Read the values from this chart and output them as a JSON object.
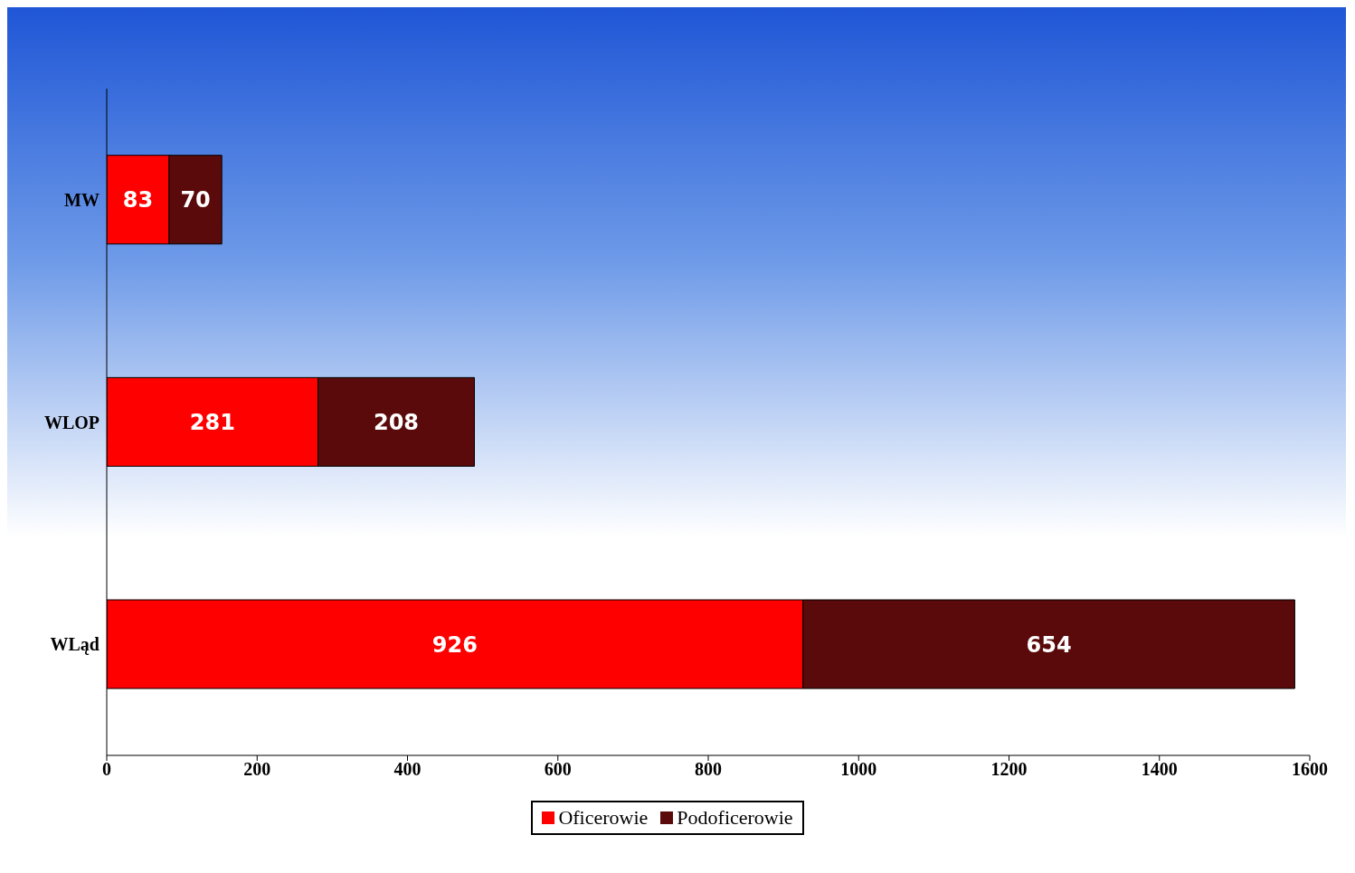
{
  "chart_data": {
    "type": "bar",
    "orientation": "horizontal",
    "stacked": true,
    "categories": [
      "MW",
      "WLOP",
      "WLąd"
    ],
    "series": [
      {
        "name": "Oficerowie",
        "color": "#ff0000",
        "values": [
          83,
          281,
          926
        ]
      },
      {
        "name": "Podoficerowie",
        "color": "#5a0a0a",
        "values": [
          70,
          208,
          654
        ]
      }
    ],
    "xlim": [
      0,
      1600
    ],
    "xticks": [
      0,
      200,
      400,
      600,
      800,
      1000,
      1200,
      1400,
      1600
    ],
    "data_labels": true,
    "legend": "bottom",
    "grid": false
  }
}
